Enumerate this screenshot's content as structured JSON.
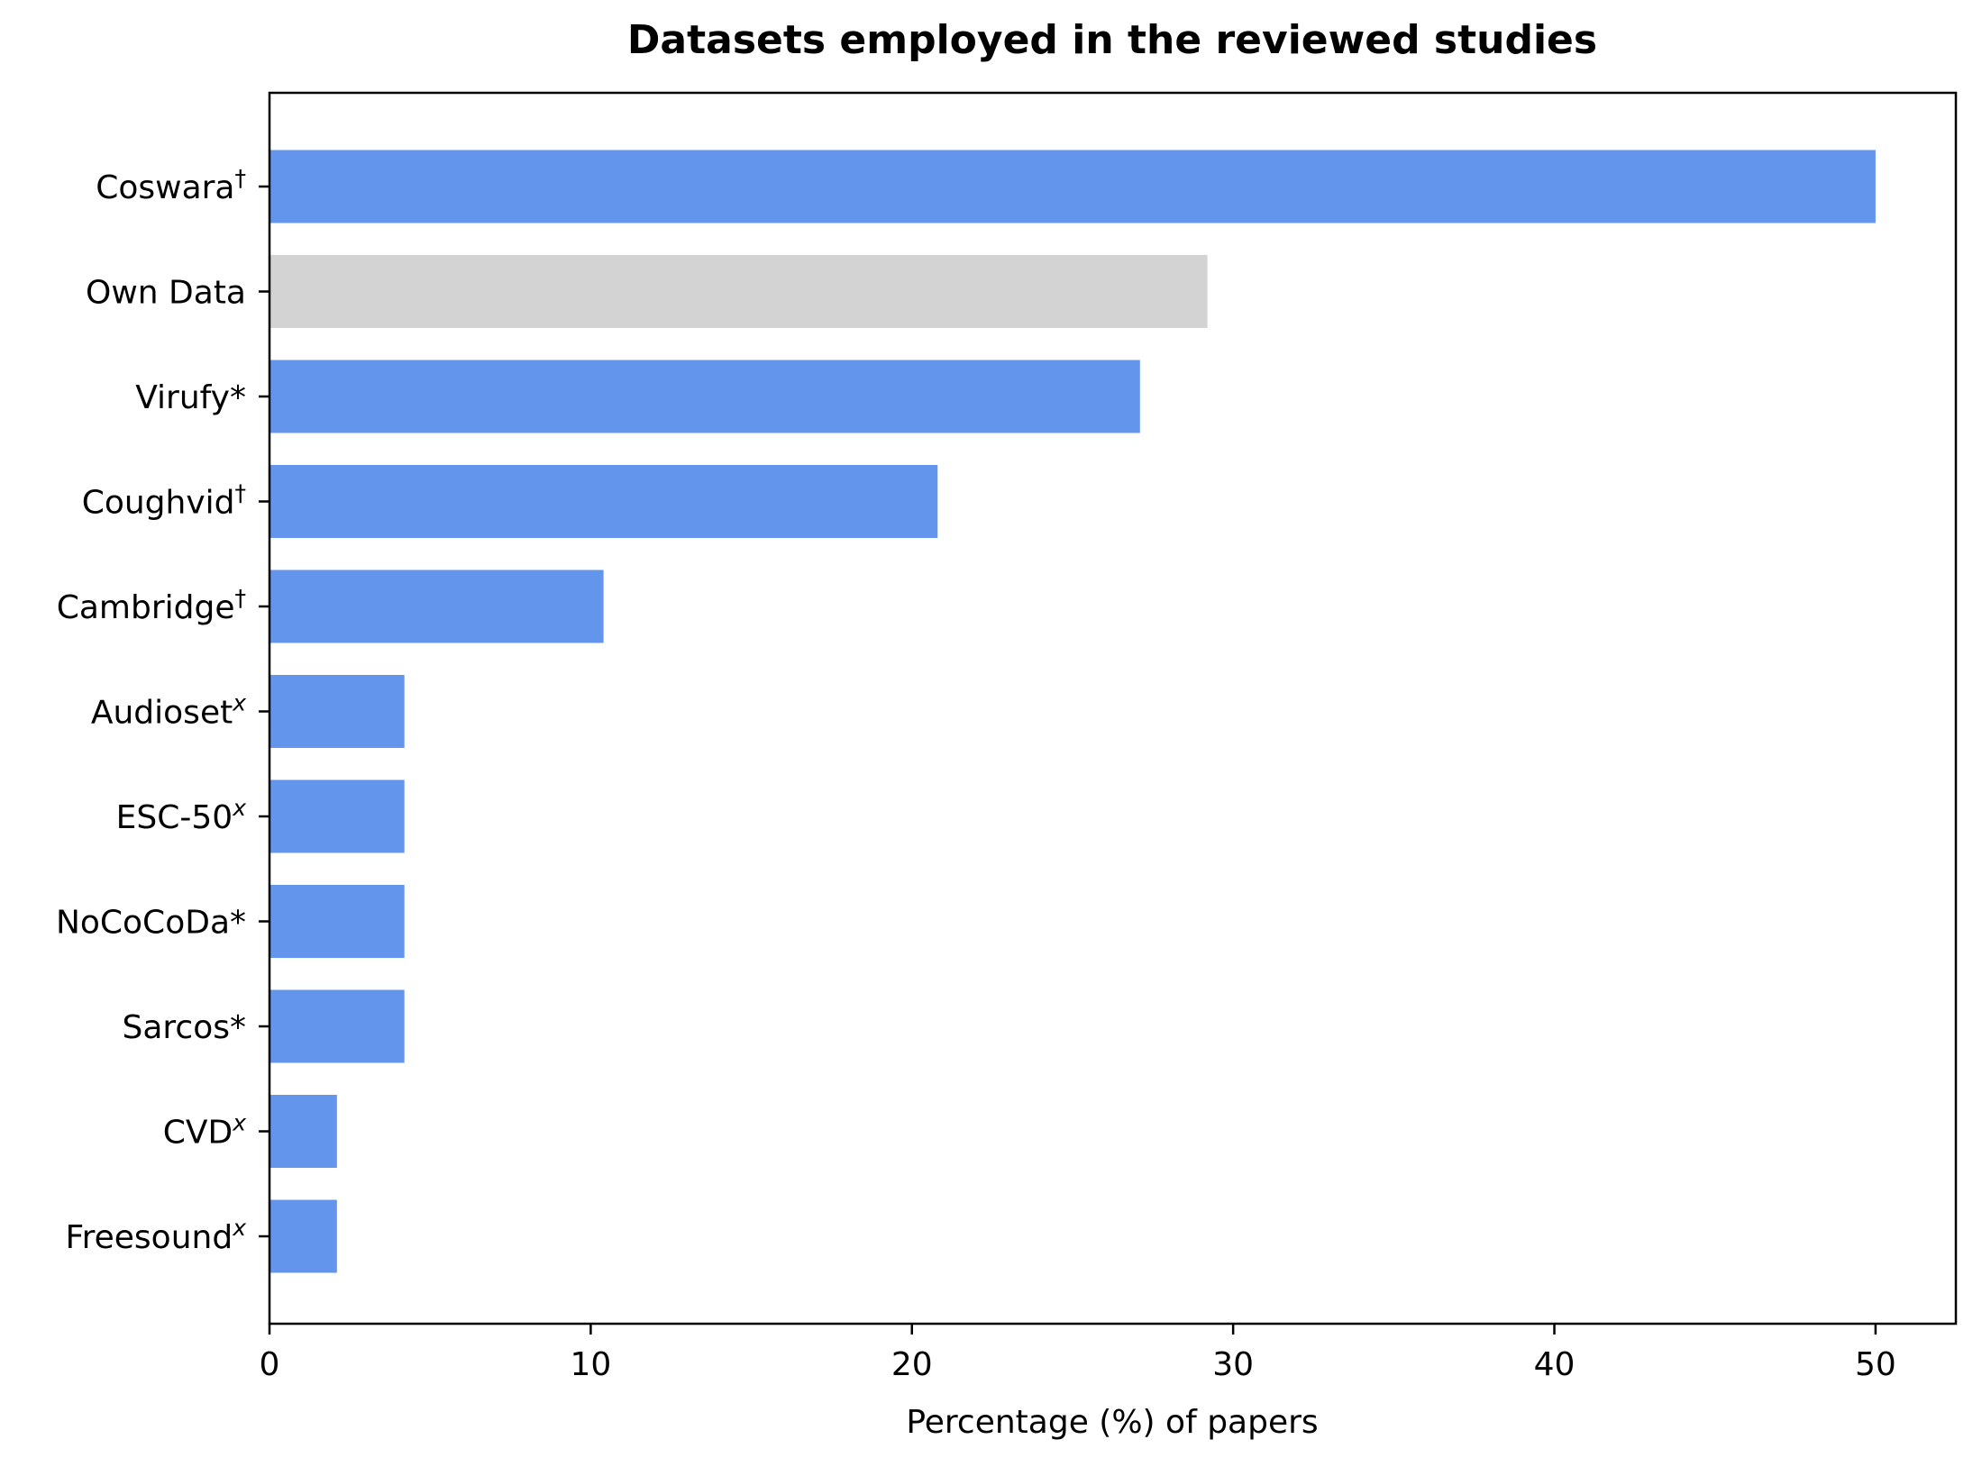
{
  "chart_data": {
    "type": "bar",
    "orientation": "horizontal",
    "title": "Datasets employed in the reviewed studies",
    "xlabel": "Percentage (%) of papers",
    "ylabel": "",
    "xlim": [
      0,
      52.5
    ],
    "xticks": [
      0,
      10,
      20,
      30,
      40,
      50
    ],
    "grid": false,
    "categories": [
      {
        "name": "Coswara",
        "sup": "†",
        "value": 50.0,
        "color": "#6495ED"
      },
      {
        "name": "Own Data",
        "sup": "",
        "value": 29.2,
        "color": "#D3D3D3"
      },
      {
        "name": "Virufy*",
        "sup": "",
        "value": 27.1,
        "color": "#6495ED"
      },
      {
        "name": "Coughvid",
        "sup": "†",
        "value": 20.8,
        "color": "#6495ED"
      },
      {
        "name": "Cambridge",
        "sup": "†",
        "value": 10.4,
        "color": "#6495ED"
      },
      {
        "name": "Audioset",
        "sup": "x",
        "value": 4.2,
        "color": "#6495ED"
      },
      {
        "name": "ESC-50",
        "sup": "x",
        "value": 4.2,
        "color": "#6495ED"
      },
      {
        "name": "NoCoCoDa*",
        "sup": "",
        "value": 4.2,
        "color": "#6495ED"
      },
      {
        "name": "Sarcos*",
        "sup": "",
        "value": 4.2,
        "color": "#6495ED"
      },
      {
        "name": "CVD",
        "sup": "x",
        "value": 2.1,
        "color": "#6495ED"
      },
      {
        "name": "Freesound",
        "sup": "x",
        "value": 2.1,
        "color": "#6495ED"
      }
    ]
  }
}
